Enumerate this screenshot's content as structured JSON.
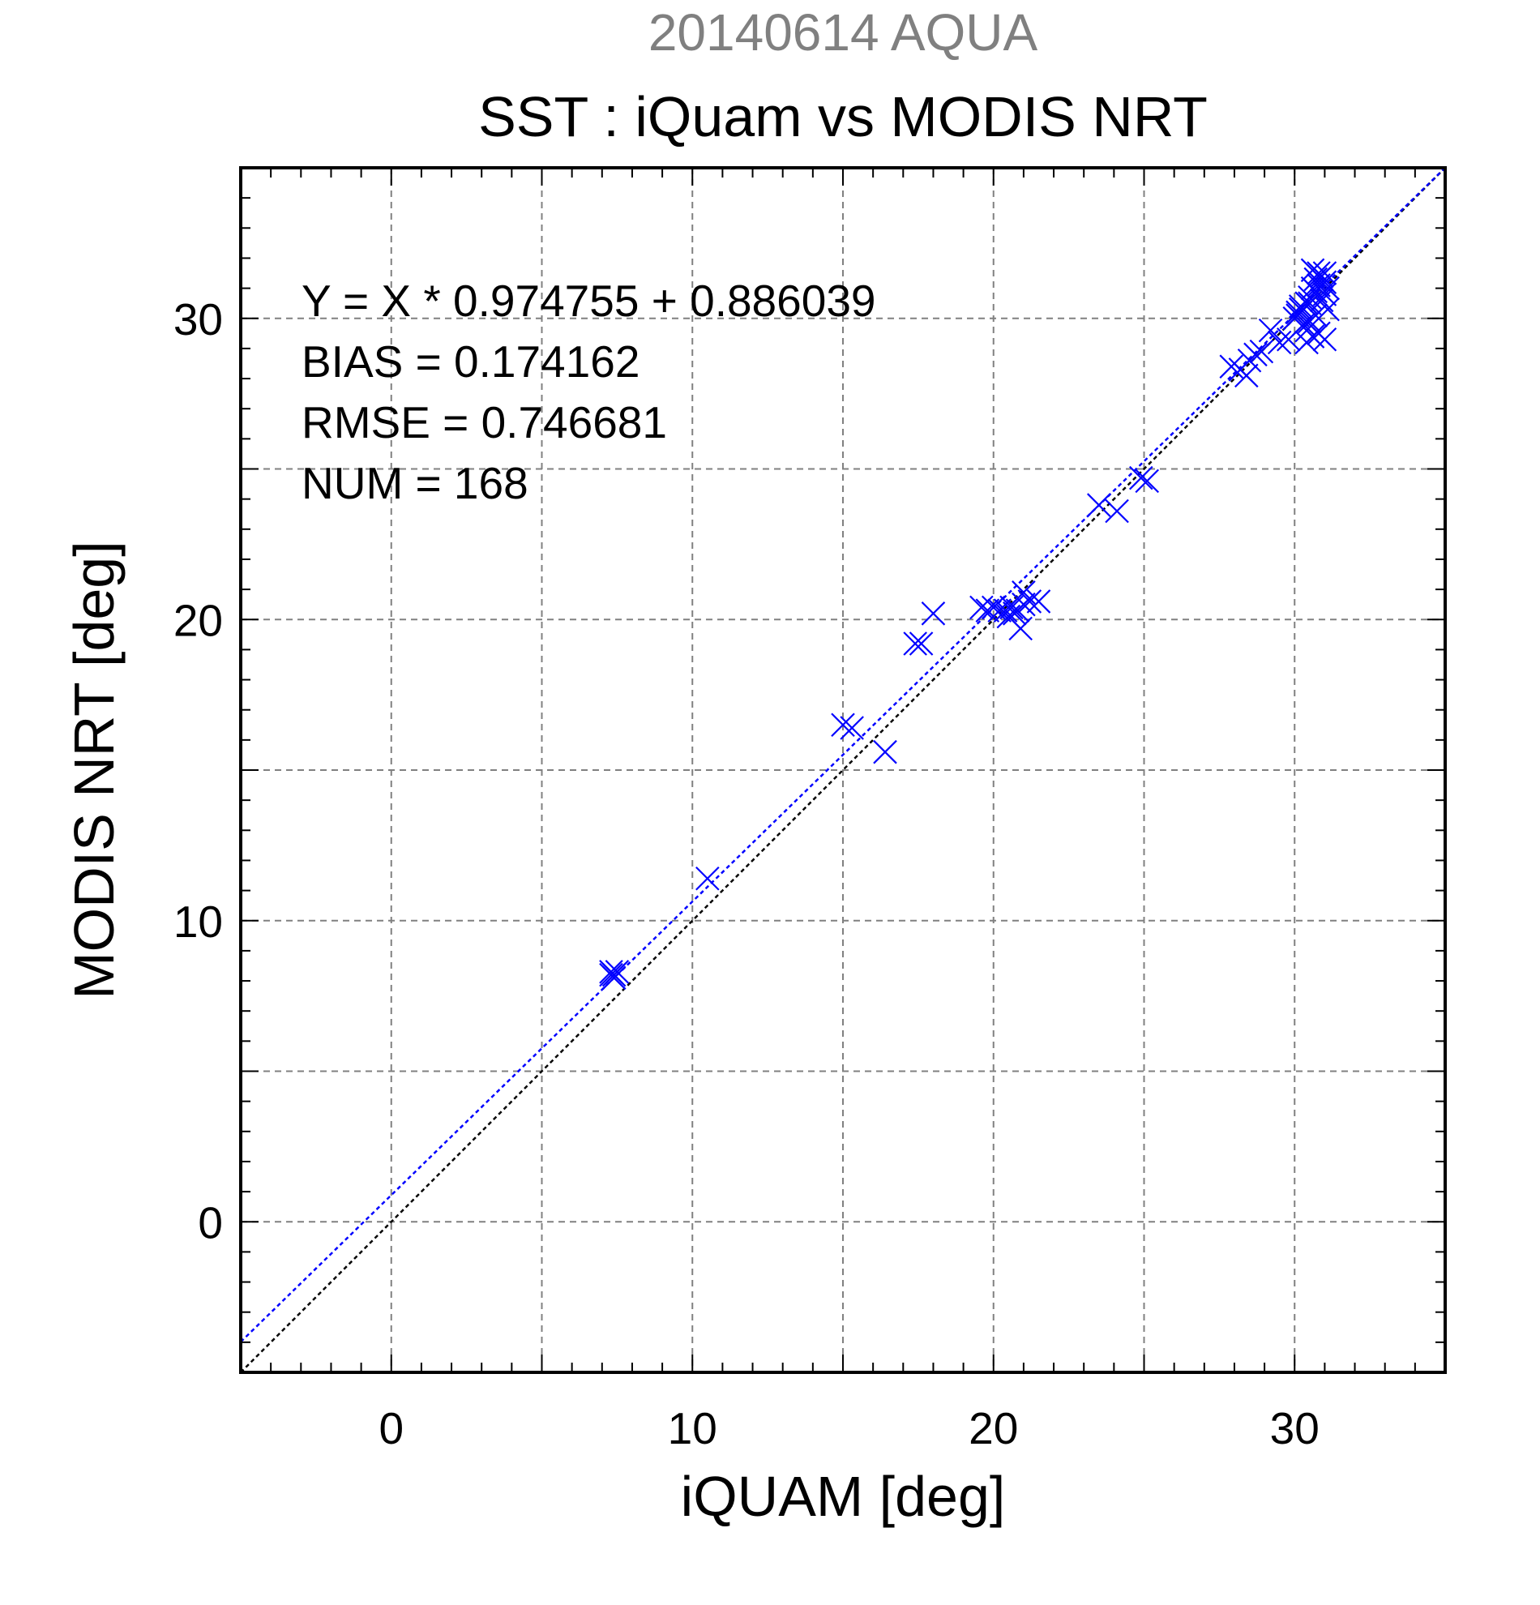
{
  "chart_data": {
    "type": "scatter",
    "subtitle": "20140614 AQUA",
    "title": "SST : iQuam vs MODIS NRT",
    "xlabel": "iQUAM [deg]",
    "ylabel": "MODIS NRT [deg]",
    "xlim": [
      -5,
      35
    ],
    "ylim": [
      -5,
      35
    ],
    "xticks": [
      0,
      10,
      20,
      30
    ],
    "yticks": [
      0,
      10,
      20,
      30
    ],
    "grid": true,
    "stats": [
      "Y = X * 0.974755 + 0.886039",
      "BIAS = 0.174162",
      "RMSE = 0.746681",
      "NUM = 168"
    ],
    "fit": {
      "slope": 0.974755,
      "intercept": 0.886039
    },
    "colors": {
      "points": "#0000ff",
      "fit_line": "#0000ff",
      "one_to_one": "#000000",
      "grid": "#808080",
      "subtitle": "#808080",
      "text": "#000000"
    },
    "series": [
      {
        "marker": "x",
        "x": [
          7.3,
          7.4,
          7.5,
          7.3,
          7.4,
          10.5,
          15.0,
          15.3,
          16.4,
          17.4,
          17.6,
          18.0,
          19.6,
          19.8,
          20.0,
          20.2,
          20.4,
          20.6,
          20.8,
          20.5,
          20.7,
          21.0,
          20.9,
          21.0,
          21.2,
          21.5,
          23.5,
          24.1,
          24.9,
          25.1,
          27.9,
          28.2,
          28.4,
          28.5,
          28.7,
          28.9,
          29.2,
          29.5,
          29.8,
          30.0,
          30.1,
          30.2,
          30.4,
          30.5,
          30.6,
          30.7,
          30.8,
          30.9,
          31.0,
          31.1,
          30.3,
          30.5,
          30.7,
          30.9,
          31.0,
          30.4,
          30.6,
          30.8,
          30.2,
          30.5,
          30.7,
          31.0,
          30.6,
          30.8,
          31.1,
          30.4,
          31.0,
          30.1
        ],
        "y": [
          8.2,
          8.1,
          8.3,
          8.3,
          8.2,
          11.4,
          16.5,
          16.4,
          15.6,
          19.2,
          19.2,
          20.2,
          20.4,
          20.3,
          20.4,
          20.3,
          20.3,
          20.4,
          20.3,
          20.1,
          20.2,
          20.5,
          19.7,
          20.9,
          20.6,
          20.6,
          23.8,
          23.6,
          24.7,
          24.6,
          28.4,
          28.3,
          28.1,
          28.6,
          28.8,
          28.9,
          29.6,
          29.2,
          29.3,
          30.0,
          30.2,
          30.3,
          30.5,
          30.7,
          31.0,
          31.3,
          31.5,
          31.4,
          31.2,
          31.0,
          29.8,
          29.9,
          30.1,
          30.6,
          30.8,
          29.2,
          29.4,
          29.5,
          30.4,
          30.5,
          30.9,
          29.3,
          31.6,
          31.1,
          30.3,
          29.6,
          31.5,
          30.1
        ]
      }
    ]
  }
}
